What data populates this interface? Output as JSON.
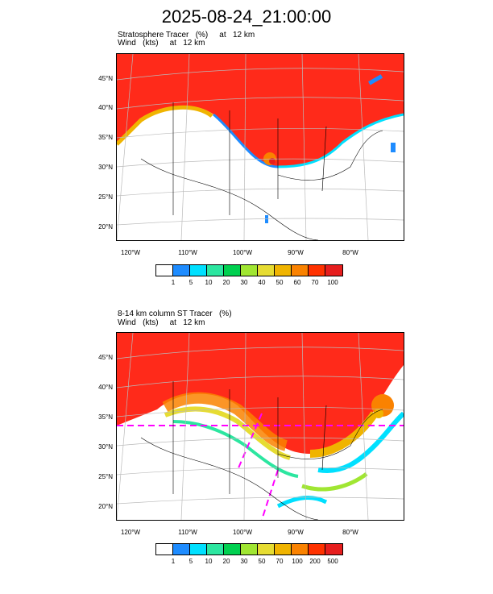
{
  "title": "2025-08-24_21:00:00",
  "panels": [
    {
      "subtitle1": "Stratosphere Tracer   (%)",
      "subtitle1_right": "at   12 km",
      "subtitle2": "Wind   (kts)",
      "subtitle2_right": "at   12 km",
      "colorbar_labels": [
        "1",
        "5",
        "10",
        "20",
        "30",
        "40",
        "50",
        "60",
        "70",
        "100"
      ]
    },
    {
      "subtitle1": "8-14 km column ST Tracer   (%)",
      "subtitle2": "Wind   (kts)",
      "subtitle2_right": "at   12 km",
      "colorbar_labels": [
        "1",
        "5",
        "10",
        "20",
        "30",
        "50",
        "70",
        "100",
        "200",
        "500"
      ]
    }
  ],
  "lat_labels": [
    "45°N",
    "40°N",
    "35°N",
    "30°N",
    "25°N",
    "20°N"
  ],
  "lon_labels": [
    "120°W",
    "110°W",
    "100°W",
    "90°W",
    "80°W"
  ],
  "colors": [
    "#ffffff",
    "#1e8cff",
    "#00e0ff",
    "#2ce6a0",
    "#00d050",
    "#a0e632",
    "#e6dc32",
    "#f0b400",
    "#fa8200",
    "#ff3200",
    "#e61e1e"
  ]
}
